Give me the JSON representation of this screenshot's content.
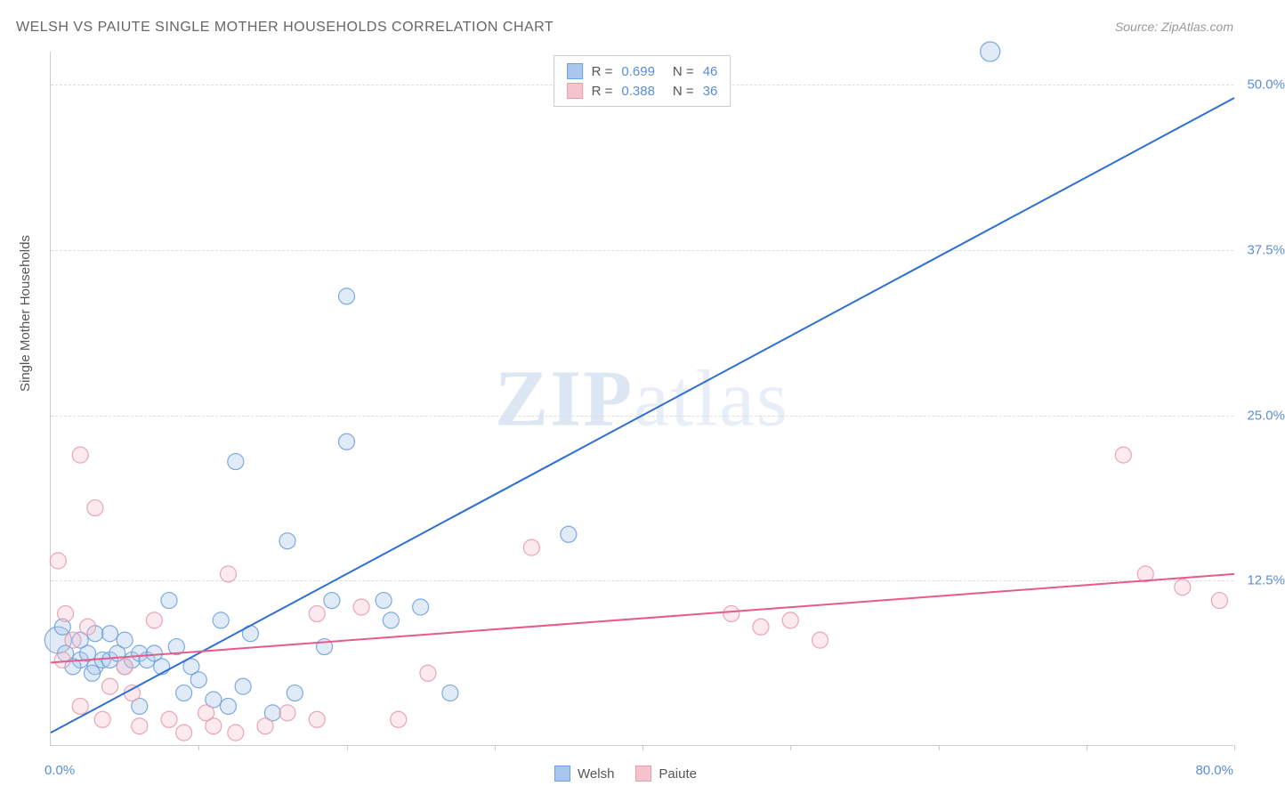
{
  "title": "WELSH VS PAIUTE SINGLE MOTHER HOUSEHOLDS CORRELATION CHART",
  "source": "Source: ZipAtlas.com",
  "ylabel": "Single Mother Households",
  "watermark_bold": "ZIP",
  "watermark_light": "atlas",
  "chart": {
    "type": "scatter",
    "xlim": [
      0,
      80
    ],
    "ylim": [
      0,
      52.5
    ],
    "x_min_label": "0.0%",
    "x_max_label": "80.0%",
    "y_ticks": [
      12.5,
      25.0,
      37.5,
      50.0
    ],
    "y_tick_labels": [
      "12.5%",
      "25.0%",
      "37.5%",
      "50.0%"
    ],
    "x_ticks": [
      10,
      20,
      30,
      40,
      50,
      60,
      70,
      80
    ],
    "grid_color": "#dddddd",
    "axis_color": "#cccccc",
    "background_color": "#ffffff",
    "marker_radius": 9,
    "marker_radius_large": 15,
    "fill_opacity": 0.35,
    "stroke_opacity": 0.9,
    "line_width": 2,
    "series": [
      {
        "name": "Welsh",
        "color_fill": "#a8c7ec",
        "color_stroke": "#6fa1db",
        "line_color": "#2e6fd1",
        "R": "0.699",
        "N": "46",
        "trend": {
          "x1": 0,
          "y1": 1.0,
          "x2": 80,
          "y2": 49.0
        },
        "points": [
          {
            "x": 63.5,
            "y": 52.5,
            "r": 11
          },
          {
            "x": 20.0,
            "y": 34.0
          },
          {
            "x": 12.5,
            "y": 21.5
          },
          {
            "x": 20.0,
            "y": 23.0
          },
          {
            "x": 16.0,
            "y": 15.5
          },
          {
            "x": 35.0,
            "y": 16.0
          },
          {
            "x": 22.5,
            "y": 11.0
          },
          {
            "x": 19.0,
            "y": 11.0
          },
          {
            "x": 25.0,
            "y": 10.5
          },
          {
            "x": 23.0,
            "y": 9.5
          },
          {
            "x": 27.0,
            "y": 4.0
          },
          {
            "x": 16.5,
            "y": 4.0
          },
          {
            "x": 13.0,
            "y": 4.5
          },
          {
            "x": 11.0,
            "y": 3.5
          },
          {
            "x": 9.0,
            "y": 4.0
          },
          {
            "x": 15.0,
            "y": 2.5
          },
          {
            "x": 18.5,
            "y": 7.5
          },
          {
            "x": 8.0,
            "y": 11.0
          },
          {
            "x": 0.5,
            "y": 8.0,
            "r": 15
          },
          {
            "x": 1.0,
            "y": 7.0
          },
          {
            "x": 2.0,
            "y": 6.5
          },
          {
            "x": 2.5,
            "y": 7.0
          },
          {
            "x": 3.0,
            "y": 6.0
          },
          {
            "x": 3.5,
            "y": 6.5
          },
          {
            "x": 4.0,
            "y": 6.5
          },
          {
            "x": 4.5,
            "y": 7.0
          },
          {
            "x": 5.0,
            "y": 6.0
          },
          {
            "x": 5.5,
            "y": 6.5
          },
          {
            "x": 6.0,
            "y": 7.0
          },
          {
            "x": 6.5,
            "y": 6.5
          },
          {
            "x": 7.0,
            "y": 7.0
          },
          {
            "x": 7.5,
            "y": 6.0
          },
          {
            "x": 8.5,
            "y": 7.5
          },
          {
            "x": 9.5,
            "y": 6.0
          },
          {
            "x": 3.0,
            "y": 8.5
          },
          {
            "x": 0.8,
            "y": 9.0
          },
          {
            "x": 2.0,
            "y": 8.0
          },
          {
            "x": 1.5,
            "y": 6.0
          },
          {
            "x": 2.8,
            "y": 5.5
          },
          {
            "x": 11.5,
            "y": 9.5
          },
          {
            "x": 13.5,
            "y": 8.5
          },
          {
            "x": 10.0,
            "y": 5.0
          },
          {
            "x": 12.0,
            "y": 3.0
          },
          {
            "x": 6.0,
            "y": 3.0
          },
          {
            "x": 4.0,
            "y": 8.5
          },
          {
            "x": 5.0,
            "y": 8.0
          }
        ]
      },
      {
        "name": "Paiute",
        "color_fill": "#f5c3ce",
        "color_stroke": "#e89bad",
        "line_color": "#e75a8a",
        "R": "0.388",
        "N": "36",
        "trend": {
          "x1": 0,
          "y1": 6.3,
          "x2": 80,
          "y2": 13.0
        },
        "points": [
          {
            "x": 72.5,
            "y": 22.0
          },
          {
            "x": 74.0,
            "y": 13.0
          },
          {
            "x": 76.5,
            "y": 12.0
          },
          {
            "x": 79.0,
            "y": 11.0
          },
          {
            "x": 50.0,
            "y": 9.5
          },
          {
            "x": 52.0,
            "y": 8.0
          },
          {
            "x": 46.0,
            "y": 10.0
          },
          {
            "x": 48.0,
            "y": 9.0
          },
          {
            "x": 32.5,
            "y": 15.0
          },
          {
            "x": 23.5,
            "y": 2.0
          },
          {
            "x": 18.0,
            "y": 2.0
          },
          {
            "x": 16.0,
            "y": 2.5
          },
          {
            "x": 14.5,
            "y": 1.5
          },
          {
            "x": 12.5,
            "y": 1.0
          },
          {
            "x": 11.0,
            "y": 1.5
          },
          {
            "x": 10.5,
            "y": 2.5
          },
          {
            "x": 9.0,
            "y": 1.0
          },
          {
            "x": 8.0,
            "y": 2.0
          },
          {
            "x": 12.0,
            "y": 13.0
          },
          {
            "x": 18.0,
            "y": 10.0
          },
          {
            "x": 21.0,
            "y": 10.5
          },
          {
            "x": 25.5,
            "y": 5.5
          },
          {
            "x": 2.0,
            "y": 22.0
          },
          {
            "x": 3.0,
            "y": 18.0
          },
          {
            "x": 0.5,
            "y": 14.0
          },
          {
            "x": 1.0,
            "y": 10.0
          },
          {
            "x": 2.5,
            "y": 9.0
          },
          {
            "x": 0.8,
            "y": 6.5
          },
          {
            "x": 4.0,
            "y": 4.5
          },
          {
            "x": 5.5,
            "y": 4.0
          },
          {
            "x": 6.0,
            "y": 1.5
          },
          {
            "x": 3.5,
            "y": 2.0
          },
          {
            "x": 5.0,
            "y": 6.0
          },
          {
            "x": 7.0,
            "y": 9.5
          },
          {
            "x": 2.0,
            "y": 3.0
          },
          {
            "x": 1.5,
            "y": 8.0
          }
        ]
      }
    ]
  },
  "legend_top_label_R": "R =",
  "legend_top_label_N": "N ="
}
